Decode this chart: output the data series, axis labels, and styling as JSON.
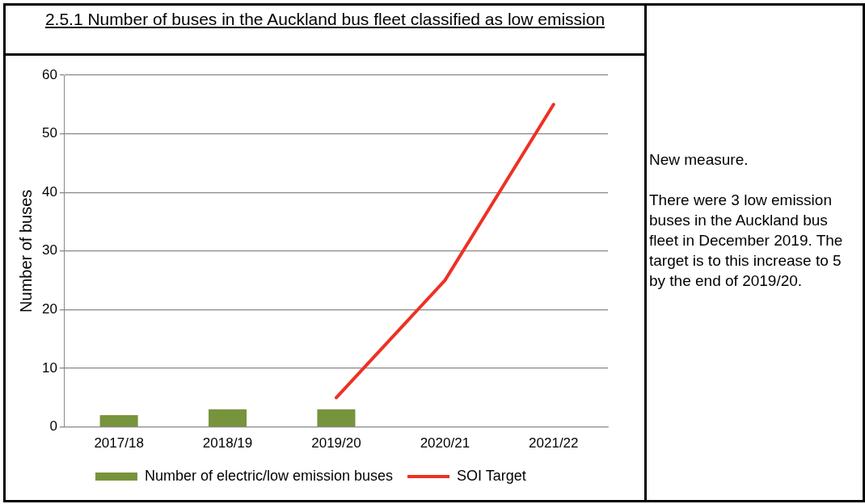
{
  "chart_data": {
    "type": "bar",
    "title": "2.5.1 Number of buses in the Auckland bus fleet classified as low emission",
    "ylabel": "Number of buses",
    "categories": [
      "2017/18",
      "2018/19",
      "2019/20",
      "2020/21",
      "2021/22"
    ],
    "series": [
      {
        "name": "Number of electric/low emission buses",
        "color": "#77933c",
        "values": [
          2,
          3,
          3,
          null,
          null
        ]
      },
      {
        "name": "SOI Target",
        "type": "line",
        "color": "#ee3124",
        "values": [
          null,
          null,
          5,
          25,
          55
        ]
      }
    ],
    "ylim": [
      0,
      60
    ],
    "yticks": [
      0,
      10,
      20,
      30,
      40,
      50,
      60
    ],
    "grid": "y",
    "legend": "bottom",
    "marker": "none",
    "line_style": "solid",
    "annotations": [
      "New measure.",
      "There were 3 low emission buses in the Auckland bus fleet in December 2019. The target is to this increase to 5 by the end of 2019/20."
    ]
  }
}
